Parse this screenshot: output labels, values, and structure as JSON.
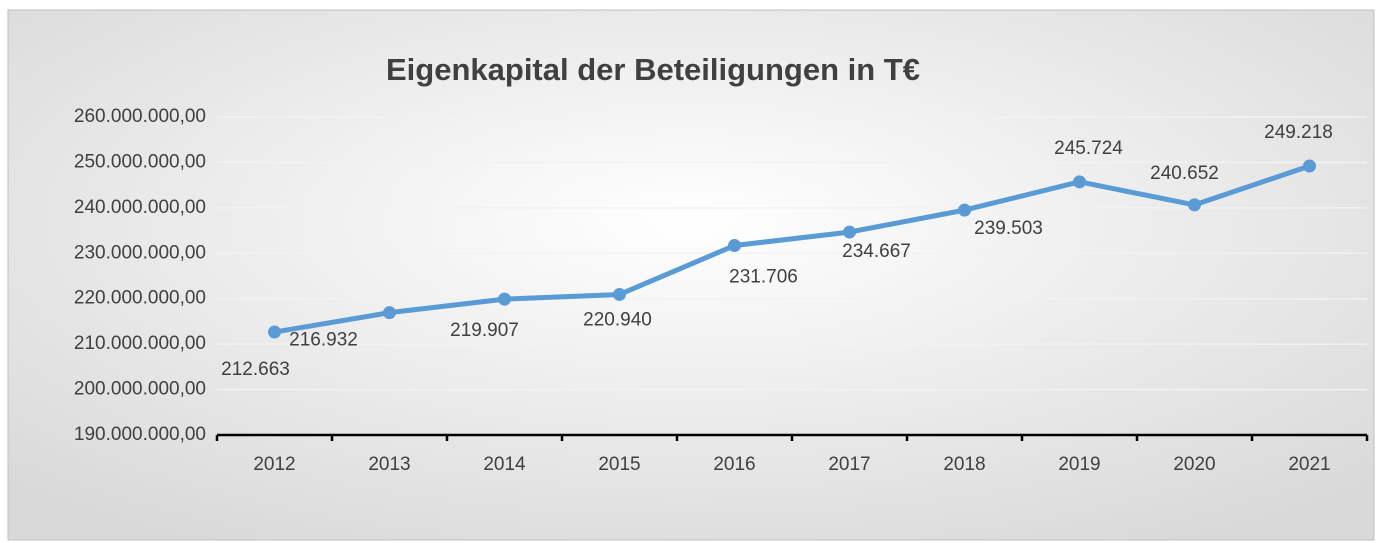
{
  "chart_data": {
    "type": "line",
    "title": "Eigenkapital der Beteiligungen in T€",
    "categories": [
      "2012",
      "2013",
      "2014",
      "2015",
      "2016",
      "2017",
      "2018",
      "2019",
      "2020",
      "2021"
    ],
    "series": [
      {
        "name": "Eigenkapital",
        "color": "#5b9bd5",
        "values": [
          212663000,
          216932000,
          219907000,
          220940000,
          231706000,
          234667000,
          239503000,
          245724000,
          240652000,
          249218000
        ],
        "value_labels": [
          "212.663",
          "216.932",
          "219.907",
          "220.940",
          "231.706",
          "234.667",
          "239.503",
          "245.724",
          "240.652",
          "249.218"
        ]
      }
    ],
    "ylim": [
      190000000,
      260000000
    ],
    "yticks": [
      {
        "value": 190000000,
        "label": "190.000.000,00"
      },
      {
        "value": 200000000,
        "label": "200.000.000,00"
      },
      {
        "value": 210000000,
        "label": "210.000.000,00"
      },
      {
        "value": 220000000,
        "label": "220.000.000,00"
      },
      {
        "value": 230000000,
        "label": "230.000.000,00"
      },
      {
        "value": 240000000,
        "label": "240.000.000,00"
      },
      {
        "value": 250000000,
        "label": "250.000.000,00"
      },
      {
        "value": 260000000,
        "label": "260.000.000,00"
      }
    ],
    "grid": true
  }
}
